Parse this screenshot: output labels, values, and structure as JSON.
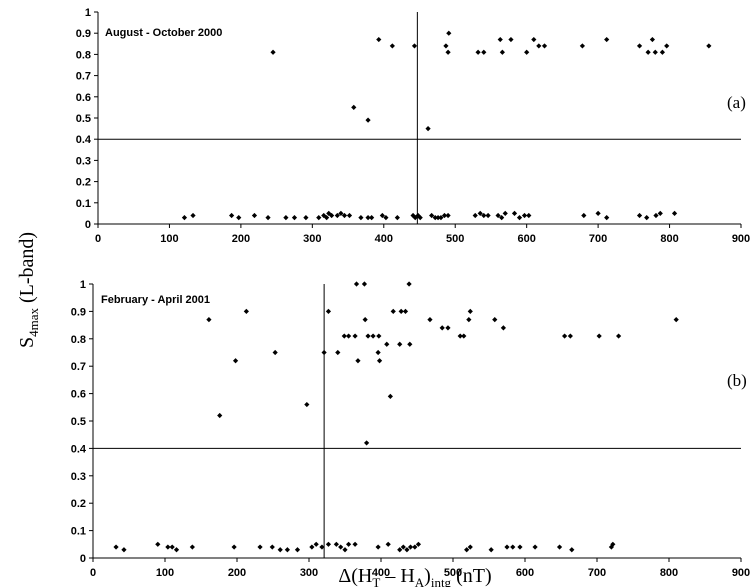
{
  "figure": {
    "ylabel_main": "S",
    "ylabel_sub": "4max",
    "ylabel_rest": " (L-band)",
    "xlabel_pre": "Δ(H",
    "xlabel_sub1": "T",
    "xlabel_mid": " – H",
    "xlabel_sub2": "A",
    "xlabel_close": ")",
    "xlabel_sub3": "intg",
    "xlabel_post": " (nT)"
  },
  "chart_data": [
    {
      "type": "scatter",
      "title": "August - October 2000",
      "panel_tag": "(a)",
      "xlim": [
        0,
        900
      ],
      "ylim": [
        0,
        1
      ],
      "xticks": [
        "0",
        "100",
        "200",
        "300",
        "400",
        "500",
        "600",
        "700",
        "800",
        "900"
      ],
      "yticks": [
        "0",
        "0.1",
        "0.2",
        "0.3",
        "0.4",
        "0.5",
        "0.6",
        "0.7",
        "0.8",
        "0.9",
        "1"
      ],
      "hline": 0.4,
      "vline": 447,
      "grid": false,
      "marker_color": "#000000",
      "points": [
        [
          245,
          0.81
        ],
        [
          358,
          0.55
        ],
        [
          378,
          0.49
        ],
        [
          393,
          0.87
        ],
        [
          412,
          0.84
        ],
        [
          443,
          0.84
        ],
        [
          462,
          0.45
        ],
        [
          487,
          0.84
        ],
        [
          490,
          0.81
        ],
        [
          491,
          0.9
        ],
        [
          532,
          0.81
        ],
        [
          540,
          0.81
        ],
        [
          563,
          0.87
        ],
        [
          566,
          0.81
        ],
        [
          578,
          0.87
        ],
        [
          600,
          0.81
        ],
        [
          610,
          0.87
        ],
        [
          617,
          0.84
        ],
        [
          625,
          0.84
        ],
        [
          678,
          0.84
        ],
        [
          712,
          0.87
        ],
        [
          758,
          0.84
        ],
        [
          770,
          0.81
        ],
        [
          776,
          0.87
        ],
        [
          780,
          0.81
        ],
        [
          790,
          0.81
        ],
        [
          796,
          0.84
        ],
        [
          855,
          0.84
        ],
        [
          121,
          0.03
        ],
        [
          133,
          0.04
        ],
        [
          187,
          0.04
        ],
        [
          197,
          0.03
        ],
        [
          219,
          0.04
        ],
        [
          238,
          0.03
        ],
        [
          263,
          0.03
        ],
        [
          275,
          0.03
        ],
        [
          291,
          0.03
        ],
        [
          309,
          0.03
        ],
        [
          316,
          0.04
        ],
        [
          320,
          0.03
        ],
        [
          323,
          0.05
        ],
        [
          327,
          0.04
        ],
        [
          335,
          0.04
        ],
        [
          340,
          0.05
        ],
        [
          345,
          0.04
        ],
        [
          352,
          0.04
        ],
        [
          368,
          0.03
        ],
        [
          378,
          0.03
        ],
        [
          383,
          0.03
        ],
        [
          398,
          0.04
        ],
        [
          403,
          0.03
        ],
        [
          419,
          0.03
        ],
        [
          441,
          0.04
        ],
        [
          444,
          0.03
        ],
        [
          448,
          0.04
        ],
        [
          451,
          0.03
        ],
        [
          467,
          0.04
        ],
        [
          472,
          0.03
        ],
        [
          476,
          0.03
        ],
        [
          480,
          0.03
        ],
        [
          485,
          0.04
        ],
        [
          490,
          0.04
        ],
        [
          528,
          0.04
        ],
        [
          535,
          0.05
        ],
        [
          540,
          0.04
        ],
        [
          546,
          0.04
        ],
        [
          560,
          0.04
        ],
        [
          565,
          0.03
        ],
        [
          570,
          0.05
        ],
        [
          583,
          0.05
        ],
        [
          590,
          0.03
        ],
        [
          597,
          0.04
        ],
        [
          603,
          0.04
        ],
        [
          680,
          0.04
        ],
        [
          700,
          0.05
        ],
        [
          712,
          0.03
        ],
        [
          758,
          0.04
        ],
        [
          768,
          0.03
        ],
        [
          781,
          0.04
        ],
        [
          787,
          0.05
        ],
        [
          807,
          0.05
        ]
      ]
    },
    {
      "type": "scatter",
      "title": "February - April 2001",
      "panel_tag": "(b)",
      "xlim": [
        0,
        900
      ],
      "ylim": [
        0,
        1
      ],
      "xticks": [
        "0",
        "100",
        "200",
        "300",
        "400",
        "500",
        "600",
        "700",
        "800",
        "900"
      ],
      "yticks": [
        "0",
        "0.1",
        "0.2",
        "0.3",
        "0.4",
        "0.5",
        "0.6",
        "0.7",
        "0.8",
        "0.9",
        "1"
      ],
      "hline": 0.4,
      "vline": 321,
      "grid": false,
      "marker_color": "#000000",
      "points": [
        [
          161,
          0.87
        ],
        [
          176,
          0.52
        ],
        [
          198,
          0.72
        ],
        [
          213,
          0.9
        ],
        [
          253,
          0.75
        ],
        [
          297,
          0.56
        ],
        [
          321,
          0.75
        ],
        [
          327,
          0.9
        ],
        [
          340,
          0.75
        ],
        [
          349,
          0.81
        ],
        [
          355,
          0.81
        ],
        [
          364,
          0.81
        ],
        [
          366,
          1.0
        ],
        [
          368,
          0.72
        ],
        [
          377,
          1.0
        ],
        [
          378,
          0.87
        ],
        [
          380,
          0.42
        ],
        [
          382,
          0.81
        ],
        [
          389,
          0.81
        ],
        [
          397,
          0.81
        ],
        [
          396,
          0.75
        ],
        [
          398,
          0.72
        ],
        [
          408,
          0.78
        ],
        [
          413,
          0.59
        ],
        [
          417,
          0.9
        ],
        [
          426,
          0.78
        ],
        [
          428,
          0.9
        ],
        [
          434,
          0.9
        ],
        [
          439,
          1.0
        ],
        [
          440,
          0.78
        ],
        [
          468,
          0.87
        ],
        [
          485,
          0.84
        ],
        [
          493,
          0.84
        ],
        [
          510,
          0.81
        ],
        [
          515,
          0.81
        ],
        [
          522,
          0.87
        ],
        [
          524,
          0.9
        ],
        [
          558,
          0.87
        ],
        [
          570,
          0.84
        ],
        [
          655,
          0.81
        ],
        [
          663,
          0.81
        ],
        [
          703,
          0.81
        ],
        [
          730,
          0.81
        ],
        [
          810,
          0.87
        ],
        [
          32,
          0.04
        ],
        [
          43,
          0.03
        ],
        [
          90,
          0.05
        ],
        [
          104,
          0.04
        ],
        [
          110,
          0.04
        ],
        [
          116,
          0.03
        ],
        [
          138,
          0.04
        ],
        [
          196,
          0.04
        ],
        [
          232,
          0.04
        ],
        [
          249,
          0.04
        ],
        [
          260,
          0.03
        ],
        [
          270,
          0.03
        ],
        [
          284,
          0.03
        ],
        [
          304,
          0.04
        ],
        [
          310,
          0.05
        ],
        [
          318,
          0.04
        ],
        [
          327,
          0.05
        ],
        [
          338,
          0.05
        ],
        [
          344,
          0.04
        ],
        [
          350,
          0.03
        ],
        [
          355,
          0.05
        ],
        [
          364,
          0.05
        ],
        [
          396,
          0.04
        ],
        [
          410,
          0.05
        ],
        [
          426,
          0.03
        ],
        [
          431,
          0.04
        ],
        [
          436,
          0.03
        ],
        [
          441,
          0.04
        ],
        [
          447,
          0.04
        ],
        [
          452,
          0.05
        ],
        [
          519,
          0.03
        ],
        [
          524,
          0.04
        ],
        [
          553,
          0.03
        ],
        [
          575,
          0.04
        ],
        [
          583,
          0.04
        ],
        [
          593,
          0.04
        ],
        [
          614,
          0.04
        ],
        [
          648,
          0.04
        ],
        [
          665,
          0.03
        ],
        [
          720,
          0.04
        ],
        [
          722,
          0.05
        ]
      ]
    }
  ]
}
